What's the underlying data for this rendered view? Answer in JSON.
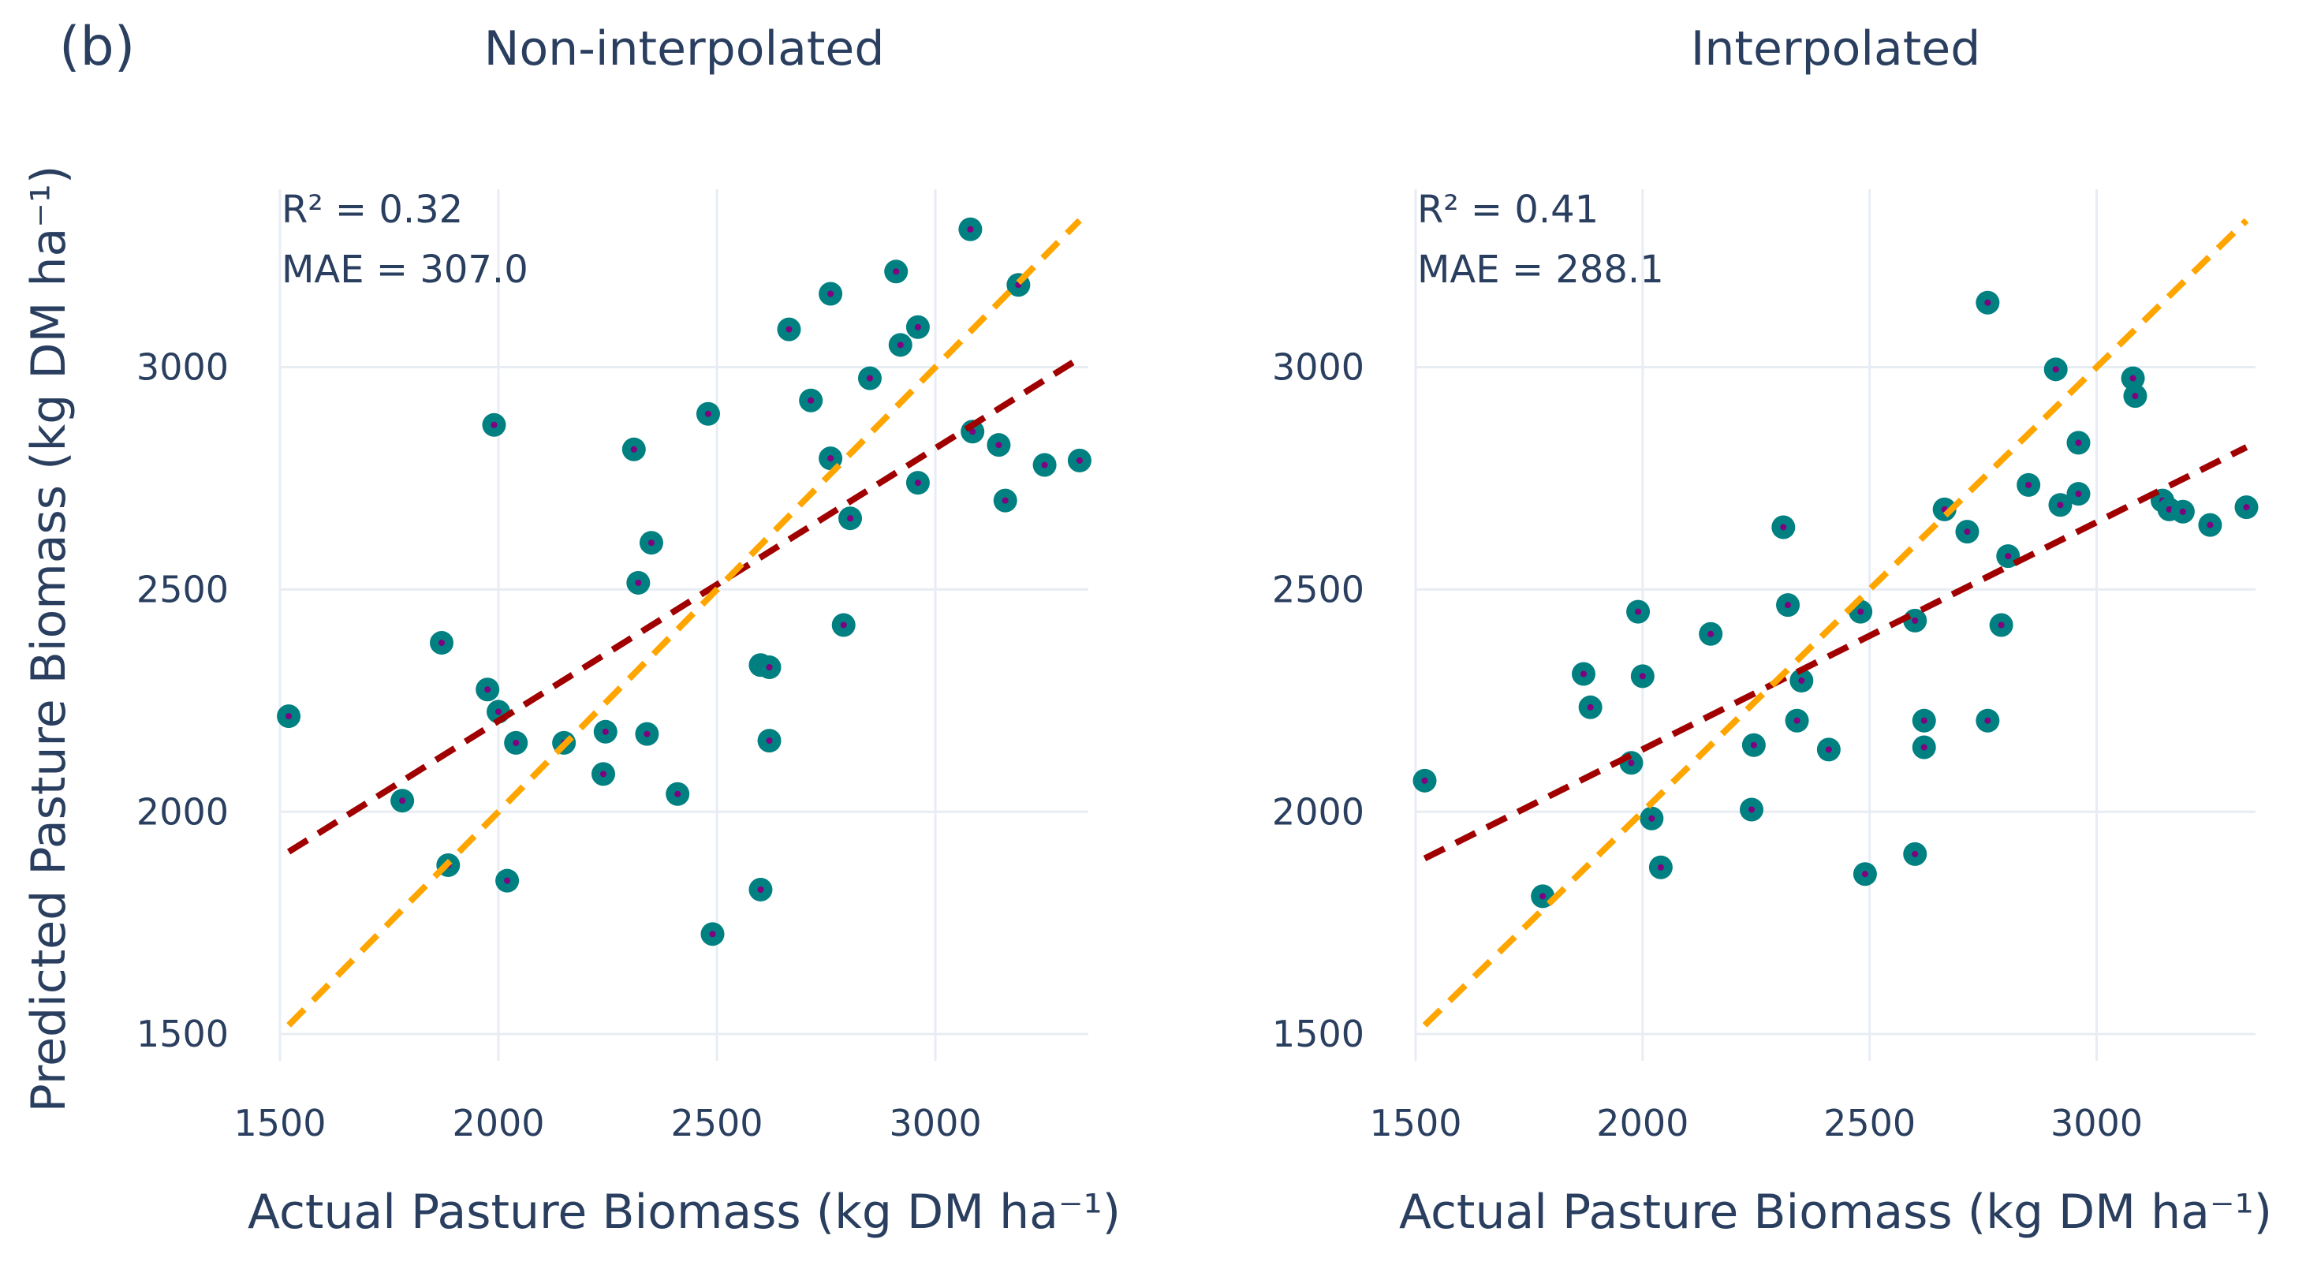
{
  "figure": {
    "panel_label": "(b)",
    "y_axis_title": "Predicted Pasture Biomass (kg DM ha⁻¹)"
  },
  "colors": {
    "marker_fill": "#008080",
    "marker_center": "#800080",
    "fit_line": "#a00000",
    "identity_line": "#ffa500",
    "text": "#2a3f5f",
    "grid": "#e8edf4"
  },
  "chart_data": [
    {
      "type": "scatter",
      "title": "Non-interpolated",
      "xlabel": "Actual Pasture Biomass (kg DM ha⁻¹)",
      "ylabel": "Predicted Pasture Biomass (kg DM ha⁻¹)",
      "xlim": [
        1500,
        3350
      ],
      "ylim": [
        1440,
        3400
      ],
      "xticks": [
        1500,
        2000,
        2500,
        3000
      ],
      "yticks": [
        1500,
        2000,
        2500,
        3000
      ],
      "annotations": {
        "r2": "R² = 0.32",
        "mae": "MAE = 307.0"
      },
      "fit_line": {
        "x": [
          1520,
          3330
        ],
        "y": [
          1910,
          3020
        ]
      },
      "identity_line": {
        "x": [
          1520,
          3330
        ],
        "y": [
          1520,
          3330
        ]
      },
      "points": [
        [
          1520,
          2215
        ],
        [
          1780,
          2025
        ],
        [
          1870,
          2380
        ],
        [
          1885,
          1880
        ],
        [
          1975,
          2275
        ],
        [
          1990,
          2870
        ],
        [
          2000,
          2225
        ],
        [
          2020,
          1845
        ],
        [
          2040,
          2155
        ],
        [
          2150,
          2155
        ],
        [
          2240,
          2085
        ],
        [
          2245,
          2180
        ],
        [
          2310,
          2815
        ],
        [
          2320,
          2515
        ],
        [
          2340,
          2175
        ],
        [
          2350,
          2605
        ],
        [
          2410,
          2040
        ],
        [
          2480,
          2895
        ],
        [
          2490,
          1725
        ],
        [
          2600,
          1825
        ],
        [
          2600,
          2330
        ],
        [
          2620,
          2325
        ],
        [
          2620,
          2160
        ],
        [
          2665,
          3085
        ],
        [
          2715,
          2925
        ],
        [
          2760,
          2795
        ],
        [
          2760,
          3165
        ],
        [
          2790,
          2420
        ],
        [
          2805,
          2660
        ],
        [
          2850,
          2975
        ],
        [
          2910,
          3215
        ],
        [
          2920,
          3050
        ],
        [
          2960,
          3090
        ],
        [
          2960,
          2740
        ],
        [
          3080,
          3310
        ],
        [
          3085,
          2855
        ],
        [
          3145,
          2825
        ],
        [
          3160,
          2700
        ],
        [
          3190,
          3185
        ],
        [
          3250,
          2780
        ],
        [
          3330,
          2790
        ]
      ]
    },
    {
      "type": "scatter",
      "title": "Interpolated",
      "xlabel": "Actual Pasture Biomass (kg DM ha⁻¹)",
      "ylabel": "",
      "xlim": [
        1500,
        3350
      ],
      "ylim": [
        1440,
        3400
      ],
      "xticks": [
        1500,
        2000,
        2500,
        3000
      ],
      "yticks": [
        1500,
        2000,
        2500,
        3000
      ],
      "annotations": {
        "r2": "R² = 0.41",
        "mae": "MAE = 288.1"
      },
      "fit_line": {
        "x": [
          1520,
          3330
        ],
        "y": [
          1895,
          2820
        ]
      },
      "identity_line": {
        "x": [
          1520,
          3330
        ],
        "y": [
          1520,
          3330
        ]
      },
      "points": [
        [
          1520,
          2070
        ],
        [
          1780,
          1810
        ],
        [
          1870,
          2310
        ],
        [
          1885,
          2235
        ],
        [
          1975,
          2110
        ],
        [
          1990,
          2450
        ],
        [
          2000,
          2305
        ],
        [
          2020,
          1985
        ],
        [
          2040,
          1875
        ],
        [
          2150,
          2400
        ],
        [
          2240,
          2005
        ],
        [
          2245,
          2150
        ],
        [
          2310,
          2640
        ],
        [
          2320,
          2465
        ],
        [
          2340,
          2205
        ],
        [
          2350,
          2295
        ],
        [
          2410,
          2140
        ],
        [
          2480,
          2450
        ],
        [
          2490,
          1860
        ],
        [
          2600,
          1905
        ],
        [
          2600,
          2430
        ],
        [
          2620,
          2205
        ],
        [
          2620,
          2145
        ],
        [
          2665,
          2680
        ],
        [
          2715,
          2630
        ],
        [
          2760,
          3145
        ],
        [
          2760,
          2205
        ],
        [
          2790,
          2420
        ],
        [
          2805,
          2575
        ],
        [
          2850,
          2735
        ],
        [
          2910,
          2995
        ],
        [
          2920,
          2690
        ],
        [
          2960,
          2830
        ],
        [
          2960,
          2715
        ],
        [
          3080,
          2975
        ],
        [
          3085,
          2935
        ],
        [
          3145,
          2700
        ],
        [
          3160,
          2680
        ],
        [
          3190,
          2675
        ],
        [
          3250,
          2645
        ],
        [
          3330,
          2685
        ]
      ]
    }
  ]
}
